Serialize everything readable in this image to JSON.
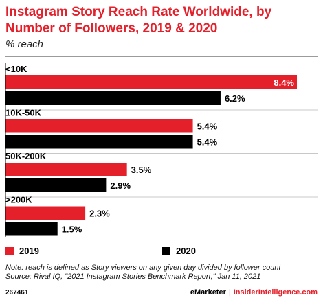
{
  "chart_data": {
    "type": "bar",
    "orientation": "horizontal",
    "title": "Instagram Story Reach Rate Worldwide, by Number of Followers, 2019 & 2020",
    "subtitle": "% reach",
    "categories": [
      "<10K",
      "10K-50K",
      "50K-200K",
      ">200K"
    ],
    "series": [
      {
        "name": "2019",
        "color": "#e4202b",
        "values": [
          8.4,
          5.4,
          3.5,
          2.3
        ],
        "labels": [
          "8.4%",
          "5.4%",
          "3.5%",
          "2.3%"
        ]
      },
      {
        "name": "2020",
        "color": "#000000",
        "values": [
          6.2,
          5.4,
          2.9,
          1.5
        ],
        "labels": [
          "6.2%",
          "5.4%",
          "2.9%",
          "1.5%"
        ]
      }
    ],
    "xlim": [
      0,
      8.4
    ],
    "grid": false,
    "legend": "bottom-left"
  },
  "footer": {
    "note": "Note: reach is defined as Story viewers on any given day divided by follower count",
    "source": "Source: Rival IQ, \"2021 Instagram Stories Benchmark Report,\" Jan 11, 2021",
    "chart_id": "267461",
    "brand_a": "eMarketer",
    "brand_sep": "|",
    "brand_b": "InsiderIntelligence.com"
  }
}
